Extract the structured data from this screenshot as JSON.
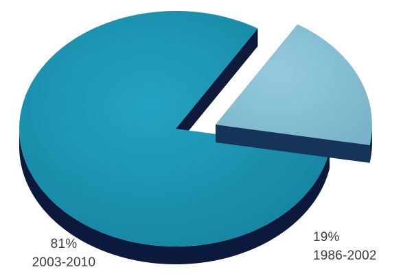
{
  "chart_data": {
    "type": "pie",
    "title": "",
    "slices": [
      {
        "label": "2003-2010",
        "value": 81,
        "value_label": "81%",
        "color": "#1e93b0",
        "exploded": false
      },
      {
        "label": "1986-2002",
        "value": 19,
        "value_label": "19%",
        "color": "#86bfd4",
        "exploded": true
      }
    ],
    "style": "3d-exploded",
    "legend": "none"
  }
}
